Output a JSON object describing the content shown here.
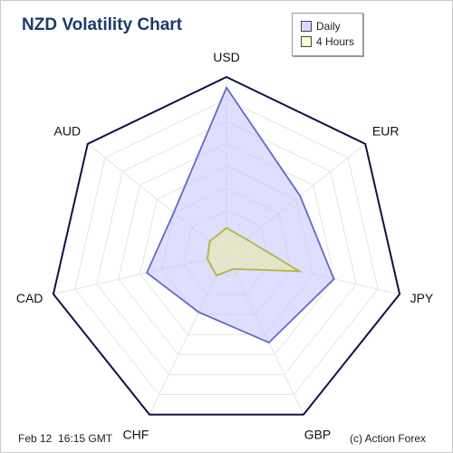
{
  "title": "NZD Volatility Chart",
  "footer": {
    "date": "Feb 12",
    "time": "16:15 GMT",
    "credit": "(c) Action Forex"
  },
  "legend": {
    "items": [
      {
        "label": "Daily",
        "color": "#d9d9ff"
      },
      {
        "label": "4 Hours",
        "color": "#ffffd0"
      }
    ]
  },
  "colors": {
    "daily_fill": "#c8c8ff",
    "daily_stroke": "#6666cc",
    "h4_fill": "#eaeaa8",
    "h4_stroke": "#b5b541",
    "outline": "#111144",
    "grid": "#e6e6dc"
  },
  "chart_data": {
    "type": "radar",
    "categories": [
      "USD",
      "EUR",
      "JPY",
      "GBP",
      "CHF",
      "CAD",
      "AUD"
    ],
    "rmax": 100,
    "grid_rings": 8,
    "series": [
      {
        "name": "Daily",
        "values": [
          94,
          53,
          62,
          55,
          36,
          46,
          38
        ]
      },
      {
        "name": "4 Hours",
        "values": [
          15,
          14,
          42,
          9,
          13,
          11,
          12
        ]
      }
    ]
  }
}
